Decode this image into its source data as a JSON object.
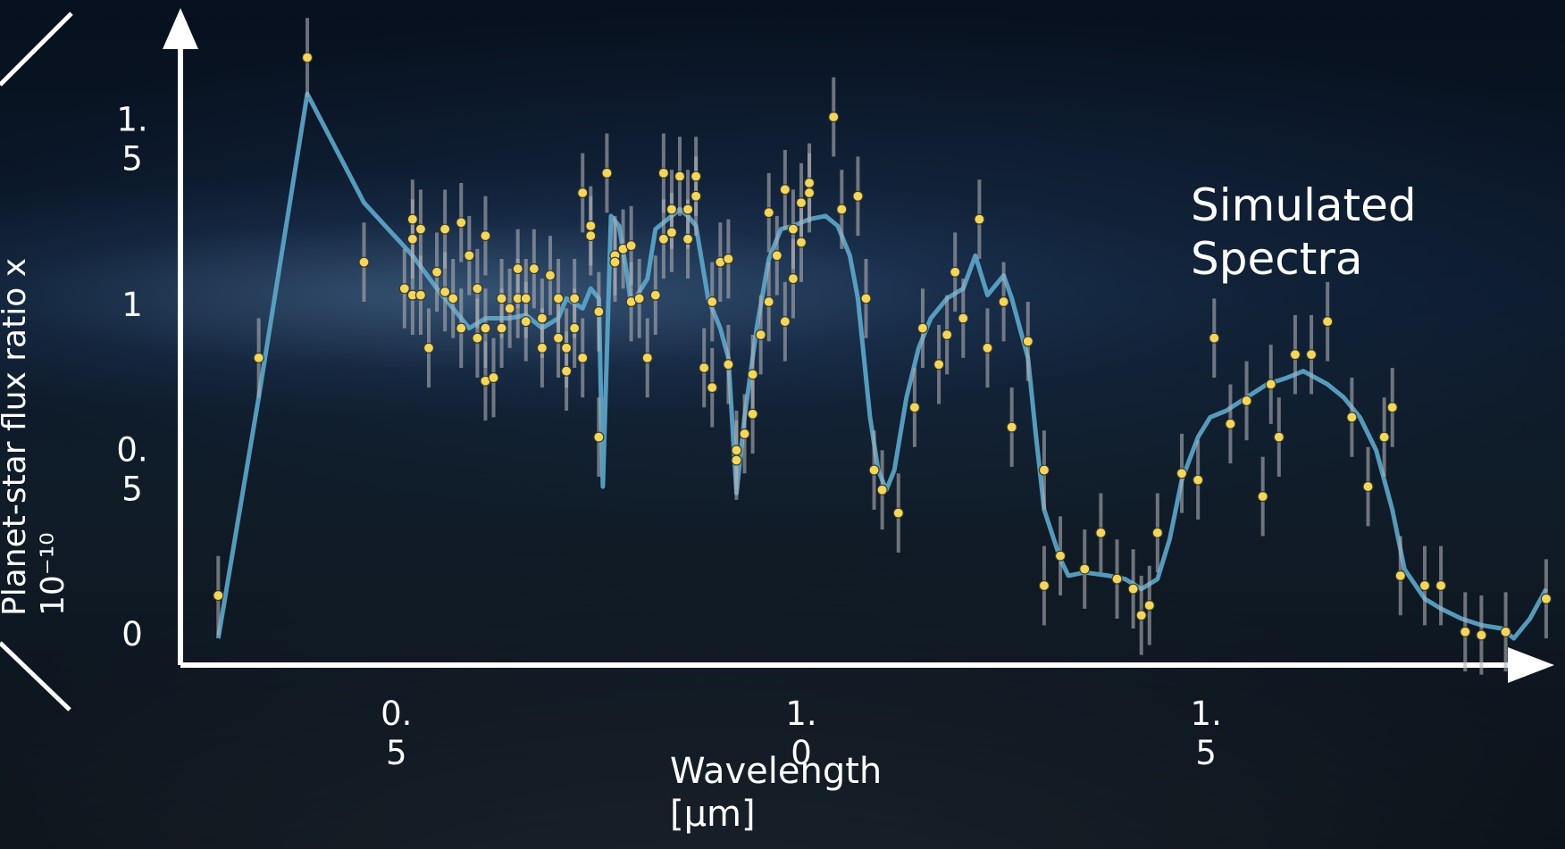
{
  "chart_data": {
    "type": "line",
    "y_label": "Planet-star flux ratio x 10⁻¹⁰",
    "x_label": "Wavelength [µm]",
    "xlim": [
      0.23,
      1.93
    ],
    "ylim": [
      -0.08,
      1.9
    ],
    "xticks": [
      0.5,
      {
        "value": 1,
        "label": "1.0"
      },
      1.5
    ],
    "yticks": [
      0,
      0.5,
      1,
      1.5
    ],
    "grid": false,
    "series": [
      {
        "name": "Simulated Spectra",
        "type": "line",
        "color": "#5ea9cc",
        "x": [
          0.28,
          0.33,
          0.39,
          0.46,
          0.52,
          0.55,
          0.57,
          0.59,
          0.61,
          0.64,
          0.66,
          0.68,
          0.7,
          0.71,
          0.73,
          0.74,
          0.75,
          0.755,
          0.765,
          0.775,
          0.785,
          0.79,
          0.81,
          0.82,
          0.84,
          0.85,
          0.86,
          0.87,
          0.885,
          0.9,
          0.91,
          0.92,
          0.93,
          0.945,
          0.96,
          0.975,
          0.99,
          1.01,
          1.03,
          1.045,
          1.06,
          1.07,
          1.085,
          1.095,
          1.105,
          1.115,
          1.13,
          1.145,
          1.16,
          1.18,
          1.2,
          1.215,
          1.23,
          1.25,
          1.26,
          1.28,
          1.29,
          1.3,
          1.32,
          1.33,
          1.35,
          1.38,
          1.4,
          1.42,
          1.44,
          1.455,
          1.47,
          1.49,
          1.505,
          1.525,
          1.55,
          1.575,
          1.6,
          1.62,
          1.65,
          1.67,
          1.69,
          1.71,
          1.73,
          1.745,
          1.77,
          1.79,
          1.815,
          1.84,
          1.865,
          1.88,
          1.9,
          1.92
        ],
        "values": [
          -0.01,
          0.72,
          1.64,
          1.31,
          1.15,
          1.05,
          0.99,
          0.93,
          0.96,
          0.96,
          0.97,
          0.93,
          0.96,
          1.02,
          0.99,
          1.05,
          1.02,
          0.45,
          1.27,
          1.24,
          1.09,
          1.0,
          1.08,
          1.23,
          1.27,
          1.29,
          1.27,
          1.24,
          1.02,
          0.93,
          0.84,
          0.43,
          0.66,
          0.93,
          1.14,
          1.23,
          1.24,
          1.26,
          1.27,
          1.24,
          1.15,
          1.02,
          0.66,
          0.5,
          0.44,
          0.5,
          0.72,
          0.87,
          0.96,
          1.02,
          1.05,
          1.15,
          1.03,
          1.09,
          1.02,
          0.84,
          0.6,
          0.38,
          0.23,
          0.18,
          0.19,
          0.18,
          0.17,
          0.14,
          0.17,
          0.29,
          0.47,
          0.6,
          0.66,
          0.68,
          0.72,
          0.76,
          0.78,
          0.8,
          0.76,
          0.72,
          0.66,
          0.56,
          0.38,
          0.2,
          0.11,
          0.08,
          0.05,
          0.03,
          0.02,
          -0.01,
          0.05,
          0.14
        ]
      },
      {
        "type": "scatter",
        "color": "#f3d65e",
        "error": 0.12,
        "x": [
          0.28,
          0.33,
          0.39,
          0.46,
          0.51,
          0.52,
          0.52,
          0.52,
          0.53,
          0.53,
          0.54,
          0.55,
          0.56,
          0.56,
          0.57,
          0.58,
          0.58,
          0.59,
          0.6,
          0.6,
          0.61,
          0.61,
          0.61,
          0.62,
          0.63,
          0.63,
          0.64,
          0.65,
          0.65,
          0.66,
          0.66,
          0.67,
          0.68,
          0.68,
          0.69,
          0.7,
          0.7,
          0.71,
          0.71,
          0.72,
          0.72,
          0.73,
          0.73,
          0.74,
          0.74,
          0.75,
          0.75,
          0.76,
          0.77,
          0.77,
          0.78,
          0.79,
          0.79,
          0.8,
          0.81,
          0.82,
          0.83,
          0.83,
          0.84,
          0.84,
          0.85,
          0.86,
          0.86,
          0.87,
          0.87,
          0.88,
          0.89,
          0.89,
          0.9,
          0.91,
          0.91,
          0.92,
          0.92,
          0.93,
          0.94,
          0.94,
          0.95,
          0.96,
          0.96,
          0.97,
          0.98,
          0.98,
          0.99,
          0.99,
          1.0,
          1.0,
          1.01,
          1.01,
          1.04,
          1.05,
          1.07,
          1.08,
          1.09,
          1.1,
          1.12,
          1.14,
          1.15,
          1.17,
          1.18,
          1.19,
          1.2,
          1.22,
          1.23,
          1.25,
          1.26,
          1.28,
          1.3,
          1.3,
          1.32,
          1.35,
          1.37,
          1.39,
          1.41,
          1.42,
          1.43,
          1.44,
          1.47,
          1.49,
          1.51,
          1.53,
          1.55,
          1.57,
          1.58,
          1.59,
          1.61,
          1.63,
          1.65,
          1.68,
          1.7,
          1.72,
          1.73,
          1.74,
          1.77,
          1.79,
          1.82,
          1.84,
          1.87,
          1.92
        ],
        "values": [
          0.12,
          0.84,
          1.75,
          1.13,
          1.05,
          1.2,
          1.26,
          1.03,
          1.23,
          1.03,
          0.87,
          1.1,
          1.04,
          1.23,
          1.02,
          1.25,
          0.93,
          1.15,
          0.9,
          1.05,
          0.77,
          1.21,
          0.93,
          0.78,
          1.02,
          0.93,
          0.99,
          1.11,
          1.02,
          0.95,
          1.02,
          1.11,
          0.87,
          0.96,
          1.09,
          0.9,
          1.02,
          0.8,
          0.87,
          1.02,
          0.93,
          0.84,
          1.34,
          1.24,
          1.21,
          0.98,
          0.6,
          1.4,
          1.15,
          1.13,
          1.17,
          1.18,
          1.01,
          1.02,
          0.84,
          1.03,
          1.2,
          1.4,
          1.29,
          1.22,
          1.39,
          1.2,
          1.29,
          1.39,
          1.33,
          0.81,
          0.75,
          1.01,
          1.13,
          1.14,
          0.82,
          0.56,
          0.53,
          0.61,
          0.79,
          0.67,
          0.91,
          1.01,
          1.28,
          1.15,
          1.35,
          0.95,
          1.23,
          1.08,
          1.31,
          1.19,
          1.37,
          1.34,
          1.57,
          1.29,
          1.33,
          1.02,
          0.5,
          0.44,
          0.37,
          0.69,
          0.93,
          0.82,
          0.91,
          1.1,
          0.96,
          1.26,
          0.87,
          1.01,
          0.63,
          0.89,
          0.5,
          0.15,
          0.24,
          0.2,
          0.31,
          0.17,
          0.14,
          0.06,
          0.09,
          0.31,
          0.49,
          0.47,
          0.9,
          0.64,
          0.71,
          0.42,
          0.76,
          0.6,
          0.85,
          0.85,
          0.95,
          0.66,
          0.45,
          0.6,
          0.69,
          0.18,
          0.15,
          0.15,
          0.01,
          0.0,
          0.01,
          0.11
        ]
      }
    ]
  }
}
